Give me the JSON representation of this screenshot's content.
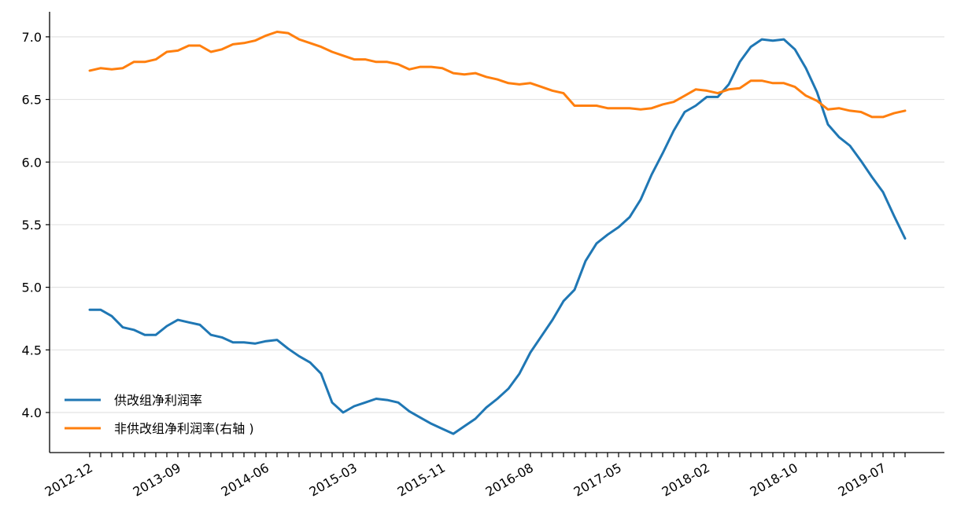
{
  "chart_data": {
    "type": "line",
    "title": "",
    "xlabel": "",
    "ylabel": "",
    "ylim": [
      3.68,
      7.2
    ],
    "yticks": [
      "4.0",
      "4.5",
      "5.0",
      "5.5",
      "6.0",
      "6.5",
      "7.0"
    ],
    "xticks": [
      "2012-12",
      "2013-09",
      "2014-06",
      "2015-03",
      "2015-11",
      "2016-08",
      "2017-05",
      "2018-02",
      "2018-10",
      "2019-07"
    ],
    "grid": "horizontal",
    "legend_position": "lower-left",
    "series": [
      {
        "name": "供改组净利润率",
        "color": "#1f77b4",
        "values": [
          4.82,
          4.82,
          4.77,
          4.68,
          4.66,
          4.62,
          4.62,
          4.69,
          4.74,
          4.72,
          4.7,
          4.62,
          4.6,
          4.56,
          4.56,
          4.55,
          4.57,
          4.58,
          4.51,
          4.45,
          4.4,
          4.31,
          4.08,
          4.0,
          4.05,
          4.08,
          4.11,
          4.1,
          4.08,
          4.01,
          3.96,
          3.91,
          3.87,
          3.83,
          3.89,
          3.95,
          4.04,
          4.11,
          4.19,
          4.31,
          4.48,
          4.61,
          4.74,
          4.89,
          4.98,
          5.21,
          5.35,
          5.42,
          5.48,
          5.56,
          5.7,
          5.9,
          6.07,
          6.25,
          6.4,
          6.45,
          6.52,
          6.52,
          6.62,
          6.8,
          6.92,
          6.98,
          6.97,
          6.98,
          6.9,
          6.75,
          6.56,
          6.3,
          6.2,
          6.13,
          6.01,
          5.88,
          5.76,
          5.57,
          5.39
        ]
      },
      {
        "name": "非供改组净利润率(右轴 )",
        "color": "#ff7f0e",
        "values": [
          6.73,
          6.75,
          6.74,
          6.75,
          6.8,
          6.8,
          6.82,
          6.88,
          6.89,
          6.93,
          6.93,
          6.88,
          6.9,
          6.94,
          6.95,
          6.97,
          7.01,
          7.04,
          7.03,
          6.98,
          6.95,
          6.92,
          6.88,
          6.85,
          6.82,
          6.82,
          6.8,
          6.8,
          6.78,
          6.74,
          6.76,
          6.76,
          6.75,
          6.71,
          6.7,
          6.71,
          6.68,
          6.66,
          6.63,
          6.62,
          6.63,
          6.6,
          6.57,
          6.55,
          6.45,
          6.45,
          6.45,
          6.43,
          6.43,
          6.43,
          6.42,
          6.43,
          6.46,
          6.48,
          6.53,
          6.58,
          6.57,
          6.55,
          6.58,
          6.59,
          6.65,
          6.65,
          6.63,
          6.63,
          6.6,
          6.53,
          6.49,
          6.42,
          6.43,
          6.41,
          6.4,
          6.36,
          6.36,
          6.39,
          6.41
        ]
      }
    ]
  }
}
